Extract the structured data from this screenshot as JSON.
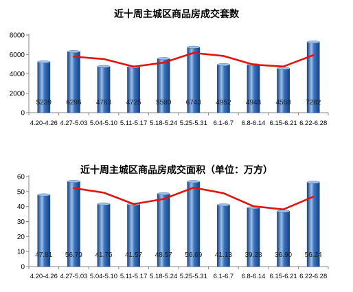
{
  "chart_data": [
    {
      "type": "bar",
      "title": "近十周主城区商品房成交套数",
      "categories": [
        "4.20-4.26",
        "4.27-5.03",
        "5.04-5.10",
        "5.11-5.17",
        "5.18-5.24",
        "5.25-5.31",
        "6.1-6.7",
        "6.8-6.14",
        "6.15-6.21",
        "6.22-6.28"
      ],
      "series": [
        {
          "values": [
            5239,
            6296,
            4763,
            4725,
            5580,
            6743,
            4952,
            4948,
            4568,
            7282
          ]
        }
      ],
      "trend_line": [
        null,
        5767.5,
        5529.5,
        4744,
        5152.5,
        6161.5,
        5847.5,
        4950,
        4758,
        5925
      ],
      "data_labels": [
        "5239",
        "6296",
        "4763",
        "4725",
        "5580",
        "6743",
        "4952",
        "4948",
        "4568",
        "7282"
      ],
      "ylim": [
        0,
        8000
      ],
      "yticks": [
        0,
        2000,
        4000,
        6000,
        8000
      ],
      "grid": false,
      "colors": {
        "bar": "#3a74c0",
        "bar_light": "#9cc0ea",
        "bar_dark": "#17427f",
        "trend": "#e3120b",
        "axis": "#868686"
      }
    },
    {
      "type": "bar",
      "title": "近十周主城区商品房成交面积（单位：万方）",
      "categories": [
        "4.20-4.26",
        "4.27-5.03",
        "5.04-5.10",
        "5.11-5.17",
        "5.18-5.24",
        "5.25-5.31",
        "6.1-6.7",
        "6.8-6.14",
        "6.15-6.21",
        "6.22-6.28"
      ],
      "series": [
        {
          "values": [
            47.81,
            56.79,
            41.76,
            41.57,
            48.57,
            56.69,
            41.13,
            39.28,
            36.9,
            56.24
          ]
        }
      ],
      "trend_line": [
        null,
        52.3,
        49.275,
        41.665,
        45.07,
        52.63,
        48.91,
        40.205,
        38.09,
        46.57
      ],
      "data_labels": [
        "47.81",
        "56.79",
        "41.76",
        "41.57",
        "48.57",
        "56.69",
        "41.13",
        "39.28",
        "36.90",
        "56.24"
      ],
      "ylim": [
        0,
        60
      ],
      "yticks": [
        0,
        10,
        20,
        30,
        40,
        50,
        60
      ],
      "grid": false,
      "colors": {
        "bar": "#3a74c0",
        "bar_light": "#9cc0ea",
        "bar_dark": "#17427f",
        "trend": "#e3120b",
        "axis": "#868686"
      }
    }
  ]
}
